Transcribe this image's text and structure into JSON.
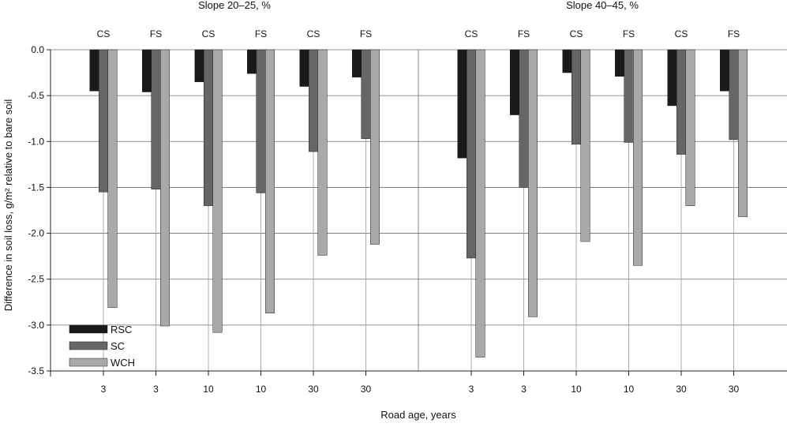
{
  "chart_data": {
    "type": "bar",
    "group_titles": [
      "Slope 20–25, %",
      "Slope 40–45, %"
    ],
    "top_labels": [
      "CS",
      "FS",
      "CS",
      "FS",
      "CS",
      "FS",
      "CS",
      "FS",
      "CS",
      "FS",
      "CS",
      "FS"
    ],
    "categories": [
      "3",
      "3",
      "10",
      "10",
      "30",
      "30",
      "3",
      "3",
      "10",
      "10",
      "30",
      "30"
    ],
    "xlabel": "Road age, years",
    "ylabel": "Difference in soil loss, g/m² relative to bare soil",
    "ylim": [
      -3.5,
      0.0
    ],
    "yticks": [
      "0.0",
      "-0.5",
      "-1.0",
      "-1.5",
      "-2.0",
      "-2.5",
      "-3.0",
      "-3.5"
    ],
    "grid": true,
    "legend_position": "bottom-left",
    "series": [
      {
        "name": "RSC",
        "color": "#1a1a1a",
        "values": [
          -0.45,
          -0.46,
          -0.35,
          -0.26,
          -0.4,
          -0.3,
          -1.18,
          -0.71,
          -0.25,
          -0.29,
          -0.61,
          -0.45
        ]
      },
      {
        "name": "SC",
        "color": "#666666",
        "values": [
          -1.55,
          -1.52,
          -1.7,
          -1.56,
          -1.11,
          -0.97,
          -2.27,
          -1.5,
          -1.03,
          -1.01,
          -1.14,
          -0.98
        ]
      },
      {
        "name": "WCH",
        "color": "#a9a9a9",
        "values": [
          -2.81,
          -3.01,
          -3.08,
          -2.87,
          -2.24,
          -2.12,
          -3.35,
          -2.91,
          -2.09,
          -2.35,
          -1.7,
          -1.82
        ]
      }
    ]
  }
}
